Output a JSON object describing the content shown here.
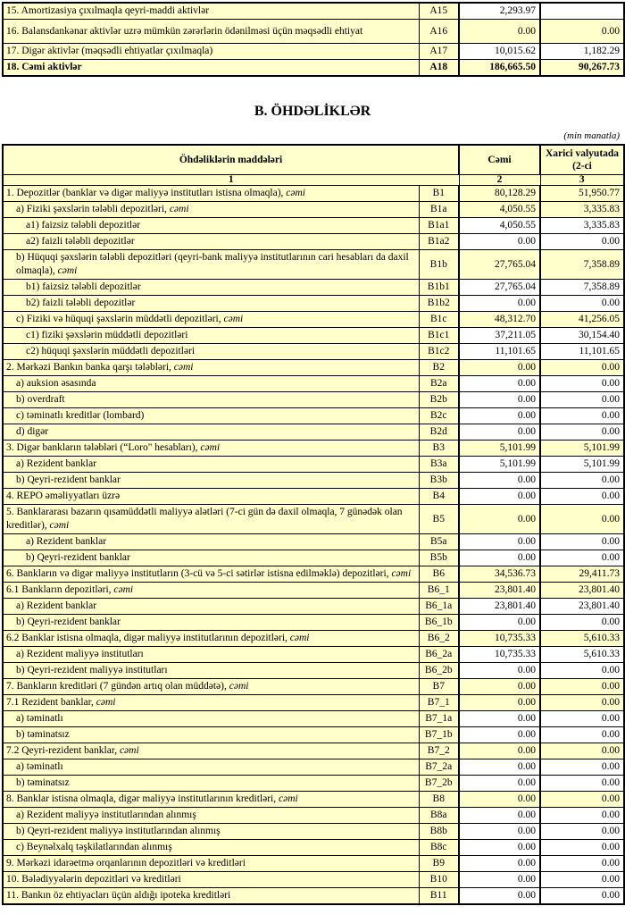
{
  "page": {
    "section_title": "B. ÖHDƏLİKLƏR",
    "unit_note": "(min manatla)"
  },
  "colors": {
    "cell_yellow": "#FFFFCC",
    "cell_white": "#FFFFFF",
    "border": "#000000",
    "page_bg": "#FFFFFF",
    "text": "#000000"
  },
  "top_table": {
    "rows": [
      {
        "label": "15. Amortizasiya çıxılmaqla qeyri-maddi aktivlər",
        "code": "A15",
        "total": "2,293.97",
        "foreign": "",
        "bg": "w",
        "ind": 0
      },
      {
        "label": "16. Balansdankənar aktivlər uzrə mümkün zərərlərin ödənilməsi üçün məqsədli ehtiyat",
        "code": "A16",
        "total": "0.00",
        "foreign": "0.00",
        "bg": "y",
        "ind": 0,
        "tall": true
      },
      {
        "label": "17. Digər aktivlər (məqsədli ehtiyatlar çıxılmaqla)",
        "code": "A17",
        "total": "10,015.62",
        "foreign": "1,182.29",
        "bg": "w",
        "ind": 0
      },
      {
        "label": "18. Cəmi aktivlər",
        "code": "A18",
        "total": "186,665.50",
        "foreign": "90,267.73",
        "bg": "y",
        "ind": 0,
        "bold": true
      }
    ]
  },
  "main_table": {
    "header": {
      "items": "Öhdəliklərin maddələri",
      "total": "Cəmi",
      "foreign": "Xarici valyutada (2-ci"
    },
    "col_nums": {
      "items": "1",
      "total": "2",
      "foreign": "3"
    },
    "rows": [
      {
        "label": "1. Depozitlər (banklar və digər maliyyə institutları istisna olmaqla), ",
        "em": "cəmi",
        "code": "B1",
        "total": "80,128.29",
        "foreign": "51,950.77",
        "bg": "y",
        "ind": 0
      },
      {
        "label": "a)  Fiziki şəxslərin tələbli depozitləri, ",
        "em": "cəmi",
        "code": "B1a",
        "total": "4,050.55",
        "foreign": "3,335.83",
        "bg": "y",
        "ind": 1
      },
      {
        "label": "a1) faizsiz tələbli depozitlər",
        "code": "B1a1",
        "total": "4,050.55",
        "foreign": "3,335.83",
        "bg": "w",
        "ind": 2
      },
      {
        "label": "a2) faizli tələbli depozitlər",
        "code": "B1a2",
        "total": "0.00",
        "foreign": "0.00",
        "bg": "w",
        "ind": 2
      },
      {
        "label": "b) Hüquqi şəxslərin tələbli depozitləri (qeyri-bank maliyyə institutlarının cari hesabları da daxil olmaqla), ",
        "em": "cəmi",
        "code": "B1b",
        "total": "27,765.04",
        "foreign": "7,358.89",
        "bg": "y",
        "ind": 1
      },
      {
        "label": "b1) faizsiz tələbli depozitlər",
        "code": "B1b1",
        "total": "27,765.04",
        "foreign": "7,358.89",
        "bg": "w",
        "ind": 2
      },
      {
        "label": "b2) faizli tələbli depozitlər",
        "code": "B1b2",
        "total": "0.00",
        "foreign": "0.00",
        "bg": "w",
        "ind": 2
      },
      {
        "label": "c) Fiziki və hüquqi şəxslərin müddətli depozitləri, ",
        "em": "cəmi",
        "code": "B1c",
        "total": "48,312.70",
        "foreign": "41,256.05",
        "bg": "y",
        "ind": 1
      },
      {
        "label": "c1) fiziki şəxslərin müddətli depozitləri",
        "code": "B1c1",
        "total": "37,211.05",
        "foreign": "30,154.40",
        "bg": "w",
        "ind": 2
      },
      {
        "label": "c2) hüquqi şəxslərin müddətli depozitləri",
        "code": "B1c2",
        "total": "11,101.65",
        "foreign": "11,101.65",
        "bg": "w",
        "ind": 2
      },
      {
        "label": "2. Mərkəzi Bankın banka qarşı tələbləri, ",
        "em": "cəmi",
        "code": "B2",
        "total": "0.00",
        "foreign": "0.00",
        "bg": "y",
        "ind": 0
      },
      {
        "label": "a) auksion əsasında",
        "code": "B2a",
        "total": "0.00",
        "foreign": "0.00",
        "bg": "w",
        "ind": 1
      },
      {
        "label": "b) overdraft",
        "code": "B2b",
        "total": "0.00",
        "foreign": "0.00",
        "bg": "w",
        "ind": 1
      },
      {
        "label": "c) təminatlı kreditlər (lombard)",
        "code": "B2c",
        "total": "0.00",
        "foreign": "0.00",
        "bg": "w",
        "ind": 1
      },
      {
        "label": "d) digər",
        "code": "B2d",
        "total": "0.00",
        "foreign": "0.00",
        "bg": "w",
        "ind": 1
      },
      {
        "label": "3. Digər bankların tələbləri (“Loro\" hesabları), ",
        "em": "cəmi",
        "code": "B3",
        "total": "5,101.99",
        "foreign": "5,101.99",
        "bg": "y",
        "ind": 0
      },
      {
        "label": "a) Rezident banklar",
        "code": "B3a",
        "total": "5,101.99",
        "foreign": "5,101.99",
        "bg": "w",
        "ind": 1
      },
      {
        "label": "b) Qeyri-rezident banklar",
        "code": "B3b",
        "total": "0.00",
        "foreign": "0.00",
        "bg": "w",
        "ind": 1
      },
      {
        "label": "4. REPO əməliyyatları  üzrə",
        "code": "B4",
        "total": "0.00",
        "foreign": "0.00",
        "bg": "w",
        "ind": 0
      },
      {
        "label": "5. Banklararası bazarın qısamüddətli maliyyə alətləri (7-ci gün də daxil olmaqla, 7 günədək olan kreditlər), ",
        "em": "cəmi",
        "code": "B5",
        "total": "0.00",
        "foreign": "0.00",
        "bg": "y",
        "ind": 0
      },
      {
        "label": "a) Rezident banklar",
        "code": "B5a",
        "total": "0.00",
        "foreign": "0.00",
        "bg": "w",
        "ind": 2
      },
      {
        "label": "b) Qeyri-rezident banklar",
        "code": "B5b",
        "total": "0.00",
        "foreign": "0.00",
        "bg": "w",
        "ind": 2
      },
      {
        "label": "6. Bankların və digər maliyyə institutların (3-cü və 5-ci sətirlər istisna edilməklə) depozitləri, ",
        "em": "cəmi",
        "code": "B6",
        "total": "34,536.73",
        "foreign": "29,411.73",
        "bg": "y",
        "ind": 0
      },
      {
        "label": "6.1  Bankların depozitləri, ",
        "em": "cəmi",
        "code": "B6_1",
        "total": "23,801.40",
        "foreign": "23,801.40",
        "bg": "y",
        "ind": 0
      },
      {
        "label": "a) Rezident banklar",
        "code": "B6_1a",
        "total": "23,801.40",
        "foreign": "23,801.40",
        "bg": "w",
        "ind": 1
      },
      {
        "label": "b) Qeyri-rezident banklar",
        "code": "B6_1b",
        "total": "0.00",
        "foreign": "0.00",
        "bg": "w",
        "ind": 1
      },
      {
        "label": "6.2 Banklar istisna olmaqla, digər maliyyə institutlarının depozitləri, ",
        "em": "cəmi",
        "code": "B6_2",
        "total": "10,735.33",
        "foreign": "5,610.33",
        "bg": "y",
        "ind": 0
      },
      {
        "label": "a) Rezident maliyyə institutları",
        "code": "B6_2a",
        "total": "10,735.33",
        "foreign": "5,610.33",
        "bg": "w",
        "ind": 1
      },
      {
        "label": "b) Qeyri-rezident maliyyə institutları",
        "code": "B6_2b",
        "total": "0.00",
        "foreign": "0.00",
        "bg": "w",
        "ind": 1
      },
      {
        "label": "7. Bankların kreditləri (7 gündən artıq olan müddətə), ",
        "em": "cəmi",
        "code": "B7",
        "total": "0.00",
        "foreign": "0.00",
        "bg": "y",
        "ind": 0
      },
      {
        "label": "7.1 Rezident banklar, ",
        "em": "cəmi",
        "code": "B7_1",
        "total": "0.00",
        "foreign": "0.00",
        "bg": "y",
        "ind": 0
      },
      {
        "label": "a) təminatlı",
        "code": "B7_1a",
        "total": "0.00",
        "foreign": "0.00",
        "bg": "w",
        "ind": 1
      },
      {
        "label": "b) təminatsız",
        "code": "B7_1b",
        "total": "0.00",
        "foreign": "0.00",
        "bg": "w",
        "ind": 1
      },
      {
        "label": "7.2 Qeyri-rezident banklar, ",
        "em": "cəmi",
        "code": "B7_2",
        "total": "0.00",
        "foreign": "0.00",
        "bg": "y",
        "ind": 0
      },
      {
        "label": "a) təminatlı",
        "code": "B7_2a",
        "total": "0.00",
        "foreign": "0.00",
        "bg": "w",
        "ind": 1
      },
      {
        "label": "b) təminatsız",
        "code": "B7_2b",
        "total": "0.00",
        "foreign": "0.00",
        "bg": "w",
        "ind": 1
      },
      {
        "label": "8. Banklar istisna olmaqla, digər maliyyə institutlarının kreditləri, ",
        "em": "cəmi",
        "code": "B8",
        "total": "0.00",
        "foreign": "0.00",
        "bg": "y",
        "ind": 0
      },
      {
        "label": "a) Rezident maliyyə institutlarından alınmış",
        "code": "B8a",
        "total": "0.00",
        "foreign": "0.00",
        "bg": "w",
        "ind": 1
      },
      {
        "label": "b) Qeyri-rezident maliyyə institutlarından alınmış",
        "code": "B8b",
        "total": "0.00",
        "foreign": "0.00",
        "bg": "w",
        "ind": 1
      },
      {
        "label": "c) Beynəlxalq təşkilatlarından alınmış",
        "code": "B8c",
        "total": "0.00",
        "foreign": "0.00",
        "bg": "w",
        "ind": 1
      },
      {
        "label": "9. Mərkəzi idarəetmə orqanlarının depozitləri və kreditləri",
        "code": "B9",
        "total": "0.00",
        "foreign": "0.00",
        "bg": "w",
        "ind": 0
      },
      {
        "label": "10. Bələdiyyələrin depozitləri və kreditləri",
        "code": "B10",
        "total": "0.00",
        "foreign": "0.00",
        "bg": "w",
        "ind": 0
      },
      {
        "label": "11. Bankın öz ehtiyacları üçün aldığı ipoteka kreditləri",
        "code": "B11",
        "total": "0.00",
        "foreign": "0.00",
        "bg": "w",
        "ind": 0
      }
    ]
  }
}
